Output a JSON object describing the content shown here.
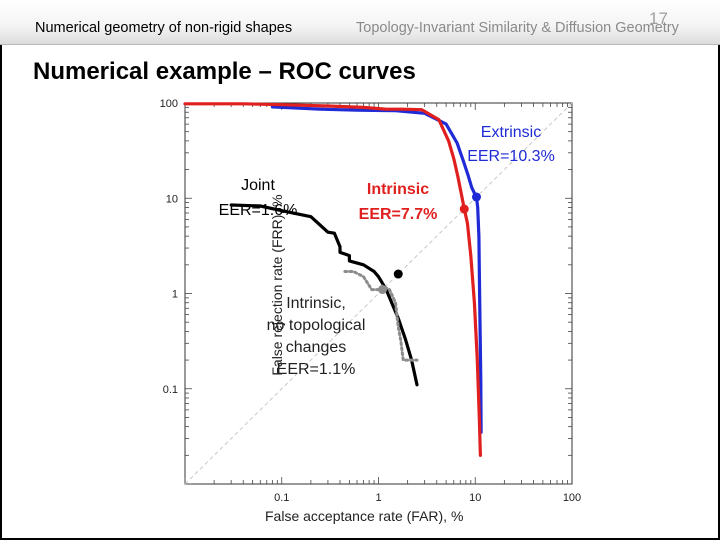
{
  "slide": {
    "header_left": "Numerical geometry of non-rigid shapes",
    "header_right": "Topology-Invariant Similarity & Diffusion Geometry",
    "slide_number": "17",
    "title": "Numerical example – ROC curves"
  },
  "colors": {
    "joint": "#000000",
    "intrinsic": "#e01f1f",
    "extrinsic": "#1f2bd6",
    "no_topo": "#8c8c8c",
    "diagonal": "#c8c8c8"
  },
  "chart_data": {
    "type": "line",
    "xscale": "log",
    "yscale": "log",
    "xlabel": "False acceptance rate (FAR), %",
    "ylabel": "False rejection rate (FRR), %",
    "xlim": [
      0.01,
      100
    ],
    "ylim": [
      0.01,
      100
    ],
    "xticks": [
      "0.1",
      "1",
      "10",
      "100"
    ],
    "yticks": [
      "100",
      "10",
      "1",
      "0.1"
    ],
    "grid": false,
    "reference_line": "EER diagonal",
    "series": [
      {
        "key": "extrinsic",
        "style": "solid",
        "x": [
          0.08,
          0.25,
          0.6,
          1.5,
          3.0,
          5.0,
          6.5,
          7.6,
          8.5,
          9.2,
          9.8,
          10.3,
          10.6,
          10.9,
          11.0,
          11.2,
          11.4,
          11.5
        ],
        "y": [
          91,
          86,
          84,
          83,
          78,
          60,
          38,
          24,
          17,
          13,
          11.3,
          10.3,
          8.0,
          4.0,
          1.8,
          0.5,
          0.12,
          0.035
        ]
      },
      {
        "key": "intrinsic",
        "style": "solid",
        "x": [
          0.01,
          0.04,
          0.1,
          0.3,
          0.7,
          1.2,
          1.8,
          2.8,
          4.2,
          5.3,
          6.0,
          6.6,
          7.2,
          7.7,
          8.3,
          9.0,
          9.8,
          10.5,
          11.0,
          11.3
        ],
        "y": [
          98,
          98,
          96,
          93,
          90,
          86,
          86,
          85,
          67,
          40,
          26,
          17,
          11,
          7.7,
          5.5,
          2.5,
          0.8,
          0.2,
          0.05,
          0.02
        ]
      },
      {
        "key": "joint",
        "style": "solid",
        "x": [
          0.03,
          0.06,
          0.1,
          0.2,
          0.3,
          0.35,
          0.4,
          0.4,
          0.45,
          0.5,
          0.5,
          0.7,
          0.9,
          1.0,
          1.2,
          1.6,
          1.9,
          2.2,
          2.5
        ],
        "y": [
          8.5,
          8.3,
          7.4,
          6.4,
          4.4,
          4.3,
          3.1,
          2.7,
          2.6,
          2.5,
          2.2,
          2.0,
          1.7,
          1.5,
          1.1,
          0.55,
          0.33,
          0.2,
          0.11
        ]
      },
      {
        "key": "no_topo",
        "style": "dotted",
        "x": [
          0.45,
          0.55,
          0.7,
          0.85,
          1.0,
          1.1,
          1.3,
          1.5,
          1.6,
          1.7,
          1.8,
          2.2,
          2.5
        ],
        "y": [
          1.7,
          1.7,
          1.5,
          1.1,
          1.1,
          1.2,
          1.1,
          0.8,
          0.45,
          0.32,
          0.2,
          0.2,
          0.2
        ]
      }
    ],
    "eer_markers": [
      {
        "key": "extrinsic",
        "eer": 10.3
      },
      {
        "key": "intrinsic",
        "eer": 7.7
      },
      {
        "key": "joint",
        "eer": 1.6
      },
      {
        "key": "no_topo",
        "eer": 1.1
      }
    ],
    "annotations": {
      "extrinsic": [
        "Extrinsic",
        "EER=10.3%"
      ],
      "intrinsic": [
        "Intrinsic",
        "EER=7.7%"
      ],
      "joint": [
        "Joint",
        "EER=1.6%"
      ],
      "no_topo": [
        "Intrinsic,",
        "no topological",
        "changes",
        "EER=1.1%"
      ]
    }
  }
}
